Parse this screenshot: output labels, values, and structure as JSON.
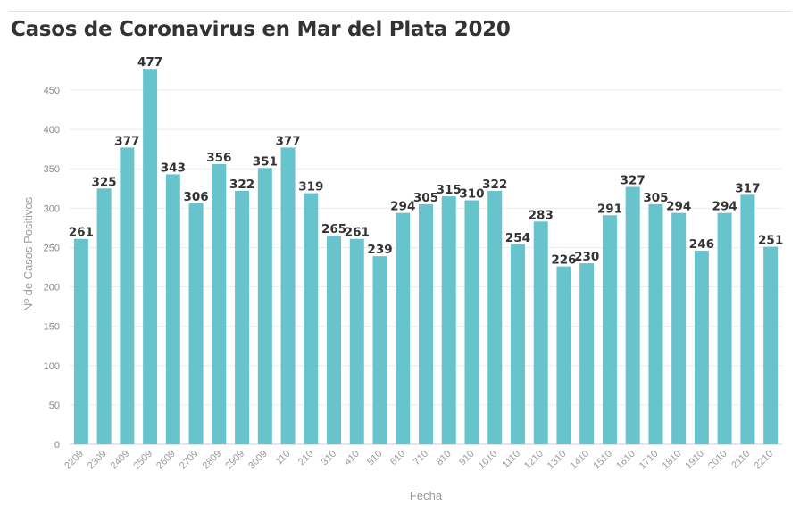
{
  "chart_data": {
    "type": "bar",
    "title": "Casos de Coronavirus en Mar del Plata 2020",
    "xlabel": "Fecha",
    "ylabel": "Nº de Casos Positivos",
    "ylim": [
      0,
      480
    ],
    "yticks": [
      0,
      50,
      100,
      150,
      200,
      250,
      300,
      350,
      400,
      450
    ],
    "grid": true,
    "bar_color": "#67c4cc",
    "categories": [
      "2209",
      "2309",
      "2409",
      "2509",
      "2609",
      "2709",
      "2809",
      "2909",
      "3009",
      "110",
      "210",
      "310",
      "410",
      "510",
      "610",
      "710",
      "810",
      "910",
      "1010",
      "1110",
      "1210",
      "1310",
      "1410",
      "1510",
      "1610",
      "1710",
      "1810",
      "1910",
      "2010",
      "2110",
      "2210"
    ],
    "values": [
      261,
      325,
      377,
      477,
      343,
      306,
      356,
      322,
      351,
      377,
      319,
      265,
      261,
      239,
      294,
      305,
      315,
      310,
      322,
      254,
      283,
      226,
      230,
      291,
      327,
      305,
      294,
      246,
      294,
      317,
      251
    ],
    "value_labels": [
      "261",
      "325",
      "377",
      "477",
      "343",
      "306",
      "356",
      "322",
      "351",
      "377",
      "319",
      "265",
      "261",
      "239",
      "294",
      "305",
      "315",
      "310",
      "322",
      "254",
      "283",
      "226",
      "230",
      "291",
      "327",
      "305",
      "294",
      "246",
      "294",
      "317",
      "251"
    ]
  }
}
